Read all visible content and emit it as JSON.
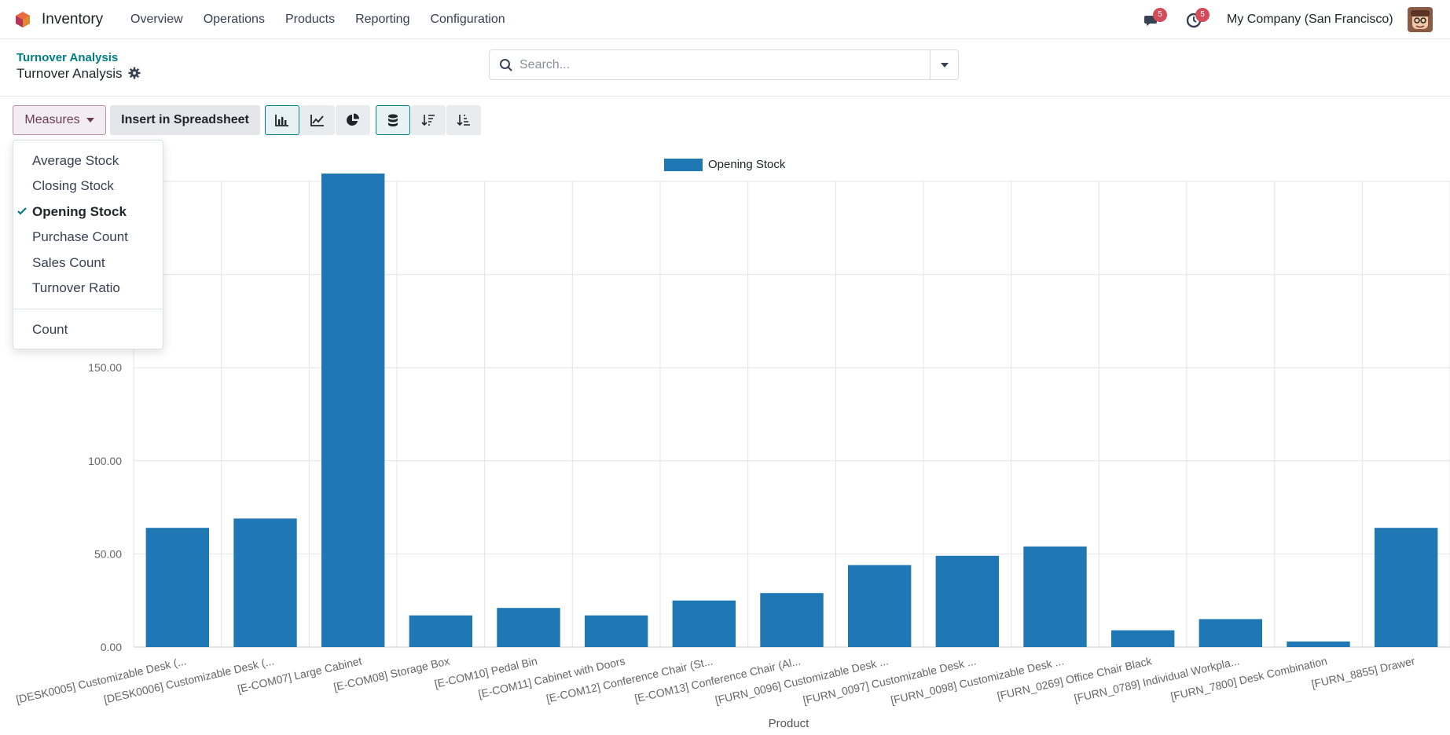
{
  "app": {
    "name": "Inventory"
  },
  "menu": [
    "Overview",
    "Operations",
    "Products",
    "Reporting",
    "Configuration"
  ],
  "notifications": {
    "messages_count": "5",
    "activities_count": "5"
  },
  "company": "My Company (San Francisco)",
  "breadcrumb": "Turnover Analysis",
  "page_title": "Turnover Analysis",
  "search": {
    "placeholder": "Search..."
  },
  "toolbar": {
    "measures_label": "Measures",
    "insert_label": "Insert in Spreadsheet"
  },
  "measures_menu": {
    "items": [
      "Average Stock",
      "Closing Stock",
      "Opening Stock",
      "Purchase Count",
      "Sales Count",
      "Turnover Ratio"
    ],
    "checked": "Opening Stock",
    "extra": "Count"
  },
  "chart_data": {
    "type": "bar",
    "xlabel": "Product",
    "ylabel": "",
    "ylim": [
      0,
      250
    ],
    "yticks": [
      "0.00",
      "50.00",
      "100.00",
      "150.00"
    ],
    "grid": true,
    "legend_position": "top-center",
    "categories": [
      "[DESK0005] Customizable Desk (...",
      "[DESK0006] Customizable Desk (...",
      "[E-COM07] Large Cabinet",
      "[E-COM08] Storage Box",
      "[E-COM10] Pedal Bin",
      "[E-COM11] Cabinet with Doors",
      "[E-COM12] Conference Chair (St...",
      "[E-COM13] Conference Chair (Al...",
      "[FURN_0096] Customizable Desk ...",
      "[FURN_0097] Customizable Desk ...",
      "[FURN_0098] Customizable Desk ...",
      "[FURN_0269] Office Chair Black",
      "[FURN_0789] Individual Workpla...",
      "[FURN_7800] Desk Combination",
      "[FURN_8855] Drawer"
    ],
    "series": [
      {
        "name": "Opening Stock",
        "color": "#1f77b4",
        "values": [
          64,
          69,
          270,
          17,
          21,
          17,
          25,
          29,
          44,
          49,
          54,
          9,
          15,
          3,
          64
        ]
      }
    ]
  }
}
